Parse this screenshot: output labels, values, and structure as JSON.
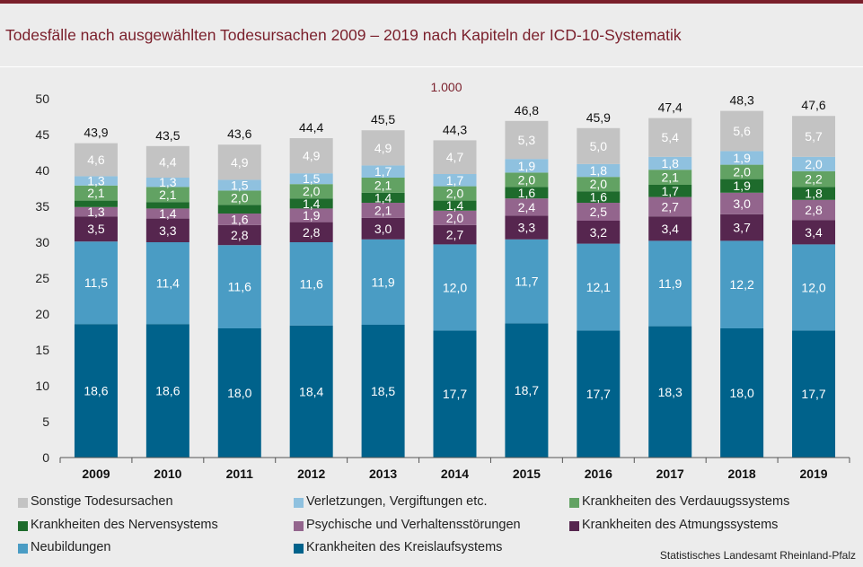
{
  "title": "Todesfälle nach ausgewählten Todesursachen 2009 – 2019 nach Kapiteln der ICD-10-Systematik",
  "source": "Statistisches Landesamt Rheinland-Pfalz",
  "chart_data": {
    "type": "bar",
    "stacked": true,
    "unit_label": "1.000",
    "categories": [
      "2009",
      "2010",
      "2011",
      "2012",
      "2013",
      "2014",
      "2015",
      "2016",
      "2017",
      "2018",
      "2019"
    ],
    "ylim": [
      0,
      50
    ],
    "yticks": [
      "0",
      "5",
      "10",
      "15",
      "20",
      "25",
      "30",
      "35",
      "40",
      "45",
      "50"
    ],
    "totals": [
      "43,9",
      "43,5",
      "43,6",
      "44,4",
      "45,5",
      "44,3",
      "46,8",
      "45,9",
      "47,4",
      "48,3",
      "47,6"
    ],
    "series": [
      {
        "name": "Krankheiten des Kreislaufsystems",
        "color": "#00628b",
        "values": [
          18.6,
          18.6,
          18.0,
          18.4,
          18.5,
          17.7,
          18.7,
          17.7,
          18.3,
          18.0,
          17.7
        ],
        "labels": [
          "18,6",
          "18,6",
          "18,0",
          "18,4",
          "18,5",
          "17,7",
          "18,7",
          "17,7",
          "18,3",
          "18,0",
          "17,7"
        ]
      },
      {
        "name": "Neubildungen",
        "color": "#4a9cc4",
        "values": [
          11.5,
          11.4,
          11.6,
          11.6,
          11.9,
          12.0,
          11.7,
          12.1,
          11.9,
          12.2,
          12.0
        ],
        "labels": [
          "11,5",
          "11,4",
          "11,6",
          "11,6",
          "11,9",
          "12,0",
          "11,7",
          "12,1",
          "11,9",
          "12,2",
          "12,0"
        ]
      },
      {
        "name": "Krankheiten des Atmungssystems",
        "color": "#56264f",
        "values": [
          3.5,
          3.3,
          2.8,
          2.8,
          3.0,
          2.7,
          3.3,
          3.2,
          3.4,
          3.7,
          3.4
        ],
        "labels": [
          "3,5",
          "3,3",
          "2,8",
          "2,8",
          "3,0",
          "2,7",
          "3,3",
          "3,2",
          "3,4",
          "3,7",
          "3,4"
        ]
      },
      {
        "name": "Psychische und Verhaltensstörungen",
        "color": "#93658d",
        "values": [
          1.3,
          1.4,
          1.6,
          1.9,
          2.1,
          2.0,
          2.4,
          2.5,
          2.7,
          3.0,
          2.8
        ],
        "labels": [
          "1,3",
          "1,4",
          "1,6",
          "1,9",
          "2,1",
          "2,0",
          "2,4",
          "2,5",
          "2,7",
          "3,0",
          "2,8"
        ]
      },
      {
        "name": "Krankheiten des Nervensystems",
        "color": "#1e6b2c",
        "values": [
          0.9,
          0.9,
          1.2,
          1.4,
          1.4,
          1.4,
          1.6,
          1.6,
          1.7,
          1.9,
          1.8
        ],
        "labels": [
          "",
          "",
          "",
          "1,4",
          "1,4",
          "1,4",
          "1,6",
          "1,6",
          "1,7",
          "1,9",
          "1,8"
        ]
      },
      {
        "name": "Krankheiten des Verdauugssystems",
        "color": "#62a263",
        "values": [
          2.1,
          2.1,
          2.0,
          2.0,
          2.1,
          2.0,
          2.0,
          2.0,
          2.1,
          2.0,
          2.2
        ],
        "labels": [
          "2,1",
          "2,1",
          "2,0",
          "2,0",
          "2,1",
          "2,0",
          "2,0",
          "2,0",
          "2,1",
          "2,0",
          "2,2"
        ]
      },
      {
        "name": "Verletzungen, Vergiftungen etc.",
        "color": "#8fc1df",
        "values": [
          1.3,
          1.3,
          1.5,
          1.5,
          1.7,
          1.7,
          1.9,
          1.8,
          1.8,
          1.9,
          2.0
        ],
        "labels": [
          "1,3",
          "1,3",
          "1,5",
          "1,5",
          "1,7",
          "1,7",
          "1,9",
          "1,8",
          "1,8",
          "1,9",
          "2,0"
        ]
      },
      {
        "name": "Sonstige Todesursachen",
        "color": "#c3c3c3",
        "values": [
          4.6,
          4.4,
          4.9,
          4.9,
          4.9,
          4.7,
          5.3,
          5.0,
          5.4,
          5.6,
          5.7
        ],
        "labels": [
          "4,6",
          "4,4",
          "4,9",
          "4,9",
          "4,9",
          "4,7",
          "5,3",
          "5,0",
          "5,4",
          "5,6",
          "5,7"
        ]
      }
    ],
    "legend_order": [
      "Sonstige Todesursachen",
      "Verletzungen, Vergiftungen etc.",
      "Krankheiten des Verdauugssystems",
      "Krankheiten des Nervensystems",
      "Psychische und Verhaltensstörungen",
      "Krankheiten des Atmungssystems",
      "Neubildungen",
      "Krankheiten des Kreislaufsystems"
    ],
    "legend_placement": "bottom",
    "grid": false
  }
}
